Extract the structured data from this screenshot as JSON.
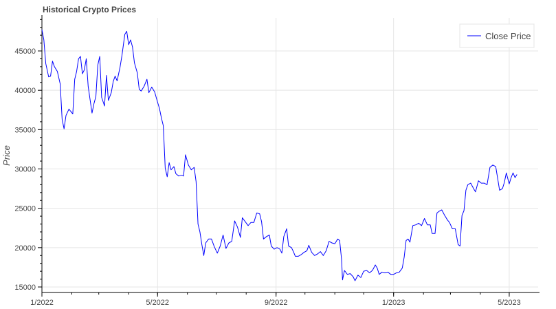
{
  "chart_data": {
    "type": "line",
    "title": "Historical Crypto Prices",
    "xlabel": "",
    "ylabel": "Price",
    "xlim": [
      "2022-01-01",
      "2023-05-31"
    ],
    "ylim": [
      14300,
      49200
    ],
    "x_ticks": [
      {
        "date": "2022-01-01",
        "label": "1/2022"
      },
      {
        "date": "2022-05-01",
        "label": "5/2022"
      },
      {
        "date": "2022-09-01",
        "label": "9/2022"
      },
      {
        "date": "2023-01-01",
        "label": "1/2023"
      },
      {
        "date": "2023-05-01",
        "label": "5/2023"
      }
    ],
    "y_ticks": [
      15000,
      20000,
      25000,
      30000,
      35000,
      40000,
      45000
    ],
    "grid": true,
    "legend": {
      "position": "top-right",
      "entries": [
        "Close Price"
      ]
    },
    "series": [
      {
        "name": "Close Price",
        "color": "#0000ff",
        "points": [
          [
            "2022-01-01",
            47700
          ],
          [
            "2022-01-03",
            46400
          ],
          [
            "2022-01-05",
            43400
          ],
          [
            "2022-01-08",
            41700
          ],
          [
            "2022-01-10",
            41800
          ],
          [
            "2022-01-12",
            43700
          ],
          [
            "2022-01-14",
            43000
          ],
          [
            "2022-01-17",
            42400
          ],
          [
            "2022-01-20",
            40800
          ],
          [
            "2022-01-22",
            36300
          ],
          [
            "2022-01-24",
            35100
          ],
          [
            "2022-01-26",
            36800
          ],
          [
            "2022-01-29",
            37600
          ],
          [
            "2022-02-02",
            37000
          ],
          [
            "2022-02-04",
            41400
          ],
          [
            "2022-02-06",
            42400
          ],
          [
            "2022-02-08",
            44000
          ],
          [
            "2022-02-10",
            44300
          ],
          [
            "2022-02-12",
            42100
          ],
          [
            "2022-02-14",
            42600
          ],
          [
            "2022-02-16",
            44000
          ],
          [
            "2022-02-18",
            40500
          ],
          [
            "2022-02-22",
            37100
          ],
          [
            "2022-02-24",
            38300
          ],
          [
            "2022-02-26",
            39200
          ],
          [
            "2022-02-28",
            43200
          ],
          [
            "2022-03-02",
            44300
          ],
          [
            "2022-03-04",
            39100
          ],
          [
            "2022-03-07",
            38000
          ],
          [
            "2022-03-09",
            41900
          ],
          [
            "2022-03-11",
            38700
          ],
          [
            "2022-03-14",
            39700
          ],
          [
            "2022-03-16",
            41100
          ],
          [
            "2022-03-18",
            41800
          ],
          [
            "2022-03-20",
            41200
          ],
          [
            "2022-03-23",
            42900
          ],
          [
            "2022-03-25",
            44400
          ],
          [
            "2022-03-28",
            47100
          ],
          [
            "2022-03-30",
            47500
          ],
          [
            "2022-04-01",
            45800
          ],
          [
            "2022-04-03",
            46400
          ],
          [
            "2022-04-05",
            45500
          ],
          [
            "2022-04-07",
            43500
          ],
          [
            "2022-04-10",
            42200
          ],
          [
            "2022-04-12",
            40100
          ],
          [
            "2022-04-14",
            39900
          ],
          [
            "2022-04-17",
            40500
          ],
          [
            "2022-04-20",
            41400
          ],
          [
            "2022-04-22",
            39700
          ],
          [
            "2022-04-25",
            40400
          ],
          [
            "2022-04-28",
            39800
          ],
          [
            "2022-05-01",
            38500
          ],
          [
            "2022-05-03",
            37700
          ],
          [
            "2022-05-05",
            36500
          ],
          [
            "2022-05-07",
            35500
          ],
          [
            "2022-05-09",
            30100
          ],
          [
            "2022-05-11",
            29000
          ],
          [
            "2022-05-13",
            30800
          ],
          [
            "2022-05-15",
            29900
          ],
          [
            "2022-05-18",
            30300
          ],
          [
            "2022-05-20",
            29400
          ],
          [
            "2022-05-23",
            29100
          ],
          [
            "2022-05-26",
            29200
          ],
          [
            "2022-05-28",
            29100
          ],
          [
            "2022-05-30",
            31800
          ],
          [
            "2022-06-02",
            30500
          ],
          [
            "2022-06-05",
            29900
          ],
          [
            "2022-06-08",
            30200
          ],
          [
            "2022-06-10",
            28400
          ],
          [
            "2022-06-12",
            23000
          ],
          [
            "2022-06-14",
            22000
          ],
          [
            "2022-06-16",
            20400
          ],
          [
            "2022-06-18",
            19000
          ],
          [
            "2022-06-20",
            20600
          ],
          [
            "2022-06-23",
            21100
          ],
          [
            "2022-06-26",
            21100
          ],
          [
            "2022-06-29",
            20100
          ],
          [
            "2022-07-02",
            19300
          ],
          [
            "2022-07-05",
            20200
          ],
          [
            "2022-07-08",
            21600
          ],
          [
            "2022-07-11",
            19900
          ],
          [
            "2022-07-14",
            20600
          ],
          [
            "2022-07-17",
            20800
          ],
          [
            "2022-07-20",
            23400
          ],
          [
            "2022-07-23",
            22600
          ],
          [
            "2022-07-26",
            21300
          ],
          [
            "2022-07-28",
            23800
          ],
          [
            "2022-07-31",
            23300
          ],
          [
            "2022-08-03",
            22800
          ],
          [
            "2022-08-06",
            23200
          ],
          [
            "2022-08-09",
            23200
          ],
          [
            "2022-08-12",
            24400
          ],
          [
            "2022-08-15",
            24300
          ],
          [
            "2022-08-17",
            23300
          ],
          [
            "2022-08-19",
            21100
          ],
          [
            "2022-08-22",
            21400
          ],
          [
            "2022-08-25",
            21600
          ],
          [
            "2022-08-27",
            20200
          ],
          [
            "2022-08-30",
            19800
          ],
          [
            "2022-09-02",
            20000
          ],
          [
            "2022-09-05",
            19800
          ],
          [
            "2022-09-07",
            19300
          ],
          [
            "2022-09-09",
            21400
          ],
          [
            "2022-09-12",
            22400
          ],
          [
            "2022-09-14",
            20200
          ],
          [
            "2022-09-17",
            20000
          ],
          [
            "2022-09-19",
            19500
          ],
          [
            "2022-09-21",
            18900
          ],
          [
            "2022-09-24",
            18900
          ],
          [
            "2022-09-27",
            19100
          ],
          [
            "2022-09-30",
            19400
          ],
          [
            "2022-10-03",
            19600
          ],
          [
            "2022-10-05",
            20300
          ],
          [
            "2022-10-08",
            19400
          ],
          [
            "2022-10-11",
            19000
          ],
          [
            "2022-10-14",
            19200
          ],
          [
            "2022-10-17",
            19500
          ],
          [
            "2022-10-20",
            19000
          ],
          [
            "2022-10-23",
            19600
          ],
          [
            "2022-10-26",
            20800
          ],
          [
            "2022-10-29",
            20600
          ],
          [
            "2022-11-01",
            20500
          ],
          [
            "2022-11-04",
            21100
          ],
          [
            "2022-11-06",
            20900
          ],
          [
            "2022-11-08",
            18500
          ],
          [
            "2022-11-09",
            15900
          ],
          [
            "2022-11-11",
            17100
          ],
          [
            "2022-11-14",
            16600
          ],
          [
            "2022-11-17",
            16700
          ],
          [
            "2022-11-20",
            16300
          ],
          [
            "2022-11-22",
            15800
          ],
          [
            "2022-11-25",
            16500
          ],
          [
            "2022-11-28",
            16200
          ],
          [
            "2022-12-01",
            17000
          ],
          [
            "2022-12-04",
            17100
          ],
          [
            "2022-12-07",
            16800
          ],
          [
            "2022-12-10",
            17100
          ],
          [
            "2022-12-13",
            17800
          ],
          [
            "2022-12-15",
            17400
          ],
          [
            "2022-12-17",
            16600
          ],
          [
            "2022-12-20",
            16900
          ],
          [
            "2022-12-23",
            16800
          ],
          [
            "2022-12-26",
            16900
          ],
          [
            "2022-12-29",
            16600
          ],
          [
            "2023-01-01",
            16600
          ],
          [
            "2023-01-04",
            16800
          ],
          [
            "2023-01-07",
            16900
          ],
          [
            "2023-01-10",
            17400
          ],
          [
            "2023-01-12",
            18800
          ],
          [
            "2023-01-14",
            20900
          ],
          [
            "2023-01-16",
            21100
          ],
          [
            "2023-01-18",
            20700
          ],
          [
            "2023-01-21",
            22800
          ],
          [
            "2023-01-24",
            22900
          ],
          [
            "2023-01-27",
            23100
          ],
          [
            "2023-01-30",
            22800
          ],
          [
            "2023-02-02",
            23700
          ],
          [
            "2023-02-05",
            22900
          ],
          [
            "2023-02-08",
            22900
          ],
          [
            "2023-02-10",
            21800
          ],
          [
            "2023-02-13",
            21800
          ],
          [
            "2023-02-15",
            24400
          ],
          [
            "2023-02-17",
            24600
          ],
          [
            "2023-02-20",
            24800
          ],
          [
            "2023-02-23",
            24100
          ],
          [
            "2023-02-26",
            23500
          ],
          [
            "2023-02-28",
            23200
          ],
          [
            "2023-03-03",
            22400
          ],
          [
            "2023-03-06",
            22400
          ],
          [
            "2023-03-09",
            20400
          ],
          [
            "2023-03-11",
            20200
          ],
          [
            "2023-03-13",
            24100
          ],
          [
            "2023-03-15",
            24700
          ],
          [
            "2023-03-17",
            27300
          ],
          [
            "2023-03-19",
            28000
          ],
          [
            "2023-03-22",
            28200
          ],
          [
            "2023-03-25",
            27500
          ],
          [
            "2023-03-27",
            27100
          ],
          [
            "2023-03-30",
            28500
          ],
          [
            "2023-04-02",
            28200
          ],
          [
            "2023-04-05",
            28200
          ],
          [
            "2023-04-08",
            28000
          ],
          [
            "2023-04-11",
            30200
          ],
          [
            "2023-04-14",
            30500
          ],
          [
            "2023-04-17",
            30300
          ],
          [
            "2023-04-19",
            28800
          ],
          [
            "2023-04-21",
            27300
          ],
          [
            "2023-04-24",
            27500
          ],
          [
            "2023-04-26",
            28300
          ],
          [
            "2023-04-28",
            29500
          ],
          [
            "2023-05-01",
            28100
          ],
          [
            "2023-05-03",
            28900
          ],
          [
            "2023-05-05",
            29500
          ],
          [
            "2023-05-07",
            28900
          ],
          [
            "2023-05-09",
            29300
          ]
        ]
      }
    ]
  }
}
